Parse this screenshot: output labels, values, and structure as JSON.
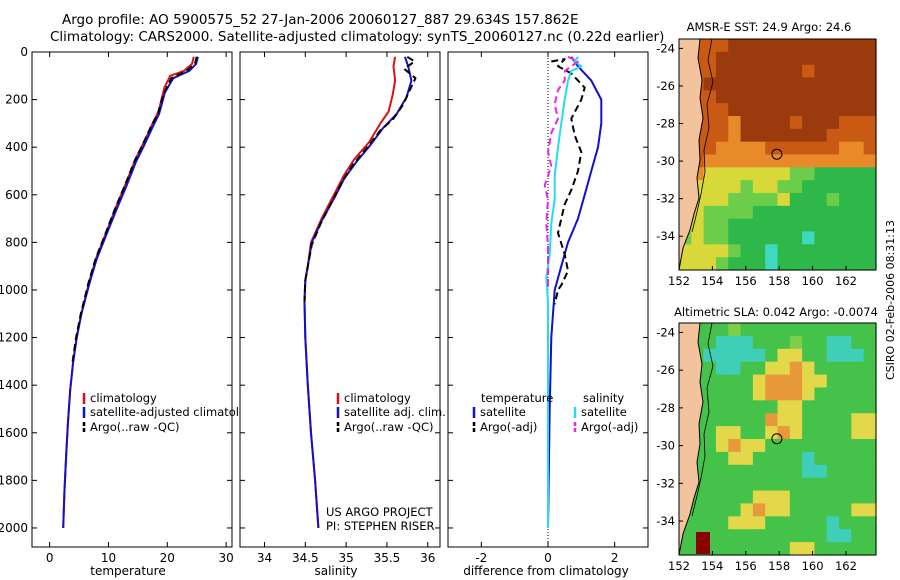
{
  "header": {
    "line1": "Argo profile: AO 5900575_52 27-Jan-2006 20060127_887 29.634S 157.862E",
    "line2": "Climatology: CARS2000. Satellite-adjusted climatology: synTS_20060127.nc (0.22d earlier)"
  },
  "colors": {
    "climatology": "#dd1111",
    "satellite": "#1111cc",
    "argo": "#000000",
    "sat_salinity": "#22ddee",
    "argo_salinity": "#ee22ee",
    "land": "#f2c39c"
  },
  "chart_data": [
    {
      "type": "line",
      "id": "temp",
      "title": "",
      "xlabel": "temperature",
      "ylabel": "",
      "xlim": [
        -3,
        31
      ],
      "ylim": [
        0,
        2080
      ],
      "x_ticks": [
        0,
        10,
        20,
        30
      ],
      "y_ticks": [
        0,
        200,
        400,
        600,
        800,
        1000,
        1200,
        1400,
        1600,
        1800,
        2000
      ],
      "legend": [
        "climatology",
        "satellite-adjusted climatology",
        "Argo(..raw -QC)"
      ],
      "legend_pos": "lower-right",
      "series": [
        {
          "name": "climatology",
          "style": "solid",
          "color_key": "climatology",
          "points": [
            [
              24.5,
              20
            ],
            [
              24.2,
              50
            ],
            [
              22.8,
              80
            ],
            [
              20.5,
              100
            ],
            [
              19.5,
              150
            ],
            [
              18.5,
              250
            ],
            [
              17.5,
              300
            ],
            [
              16,
              380
            ],
            [
              14.6,
              450
            ],
            [
              13,
              550
            ],
            [
              11.3,
              650
            ],
            [
              9.6,
              760
            ],
            [
              8,
              860
            ],
            [
              6.8,
              960
            ],
            [
              5.4,
              1100
            ],
            [
              4.6,
              1200
            ],
            [
              4,
              1300
            ],
            [
              3.5,
              1420
            ],
            [
              3.1,
              1560
            ],
            [
              2.8,
              1700
            ],
            [
              2.5,
              1850
            ],
            [
              2.3,
              2000
            ]
          ]
        },
        {
          "name": "satellite-adjusted climatology",
          "style": "solid",
          "color_key": "satellite",
          "points": [
            [
              25.2,
              20
            ],
            [
              24.9,
              50
            ],
            [
              23.7,
              80
            ],
            [
              21,
              110
            ],
            [
              19.6,
              170
            ],
            [
              18.6,
              260
            ],
            [
              17.6,
              310
            ],
            [
              16.1,
              390
            ],
            [
              14.7,
              460
            ],
            [
              13.1,
              560
            ],
            [
              11.4,
              660
            ],
            [
              9.6,
              770
            ],
            [
              8,
              870
            ],
            [
              6.8,
              970
            ],
            [
              5.4,
              1100
            ],
            [
              4.6,
              1200
            ],
            [
              4,
              1300
            ],
            [
              3.5,
              1420
            ],
            [
              3.1,
              1560
            ],
            [
              2.8,
              1700
            ],
            [
              2.5,
              1850
            ],
            [
              2.3,
              2000
            ]
          ]
        },
        {
          "name": "Argo(..raw -QC)",
          "style": "dashed",
          "color_key": "argo",
          "points": [
            [
              25.0,
              20
            ],
            [
              24.7,
              50
            ],
            [
              23.2,
              80
            ],
            [
              20.7,
              110
            ],
            [
              19.3,
              180
            ],
            [
              18.4,
              260
            ],
            [
              17.3,
              310
            ],
            [
              15.8,
              390
            ],
            [
              14.4,
              460
            ],
            [
              12.8,
              560
            ],
            [
              11.1,
              660
            ],
            [
              9.4,
              770
            ],
            [
              7.8,
              870
            ],
            [
              6.6,
              970
            ],
            [
              5.3,
              1100
            ],
            [
              4.5,
              1200
            ],
            [
              3.9,
              1300
            ]
          ]
        }
      ]
    },
    {
      "type": "line",
      "id": "sal",
      "title": "",
      "xlabel": "salinity",
      "ylabel": "",
      "xlim": [
        33.7,
        36.15
      ],
      "ylim": [
        0,
        2080
      ],
      "x_ticks": [
        34,
        34.5,
        35,
        35.5,
        36
      ],
      "legend": [
        "climatology",
        "satellite adj. clim.",
        "Argo(..raw -QC)"
      ],
      "legend_pos": "lower-right",
      "annotation": [
        "US ARGO PROJECT",
        "PI: STEPHEN RISER"
      ],
      "series": [
        {
          "name": "climatology",
          "style": "solid",
          "color_key": "climatology",
          "points": [
            [
              35.6,
              20
            ],
            [
              35.58,
              60
            ],
            [
              35.6,
              120
            ],
            [
              35.57,
              180
            ],
            [
              35.52,
              250
            ],
            [
              35.42,
              300
            ],
            [
              35.28,
              380
            ],
            [
              35.1,
              450
            ],
            [
              34.97,
              520
            ],
            [
              34.85,
              600
            ],
            [
              34.7,
              700
            ],
            [
              34.57,
              800
            ],
            [
              34.53,
              900
            ],
            [
              34.5,
              960
            ],
            [
              34.49,
              1050
            ],
            [
              34.5,
              1200
            ],
            [
              34.53,
              1400
            ],
            [
              34.57,
              1600
            ],
            [
              34.62,
              1800
            ],
            [
              34.66,
              2000
            ]
          ]
        },
        {
          "name": "satellite adj. clim.",
          "style": "solid",
          "color_key": "satellite",
          "points": [
            [
              35.72,
              20
            ],
            [
              35.76,
              60
            ],
            [
              35.8,
              120
            ],
            [
              35.74,
              190
            ],
            [
              35.62,
              260
            ],
            [
              35.45,
              320
            ],
            [
              35.3,
              390
            ],
            [
              35.13,
              460
            ],
            [
              34.98,
              530
            ],
            [
              34.86,
              610
            ],
            [
              34.7,
              710
            ],
            [
              34.58,
              800
            ],
            [
              34.53,
              900
            ],
            [
              34.5,
              960
            ],
            [
              34.49,
              1050
            ],
            [
              34.5,
              1200
            ],
            [
              34.53,
              1400
            ],
            [
              34.57,
              1600
            ],
            [
              34.62,
              1800
            ],
            [
              34.66,
              2000
            ]
          ]
        },
        {
          "name": "Argo(..raw -QC)",
          "style": "dashed",
          "color_key": "argo",
          "points": [
            [
              35.75,
              20
            ],
            [
              35.84,
              40
            ],
            [
              35.71,
              70
            ],
            [
              35.85,
              110
            ],
            [
              35.78,
              160
            ],
            [
              35.7,
              220
            ],
            [
              35.58,
              280
            ],
            [
              35.42,
              330
            ],
            [
              35.26,
              400
            ],
            [
              35.09,
              470
            ],
            [
              34.96,
              540
            ],
            [
              34.84,
              620
            ],
            [
              34.69,
              720
            ],
            [
              34.58,
              810
            ],
            [
              34.53,
              900
            ],
            [
              34.5,
              960
            ],
            [
              34.49,
              1050
            ]
          ]
        }
      ]
    },
    {
      "type": "line",
      "id": "diff",
      "title": "",
      "xlabel": "difference from climatology",
      "ylabel": "",
      "xlim": [
        -3,
        3
      ],
      "ylim": [
        0,
        2080
      ],
      "x_ticks": [
        -2,
        0,
        2
      ],
      "legend_temperature_title": "temperature",
      "legend_salinity_title": "salinity",
      "legend_temperature": [
        "satellite",
        "Argo(-adj)"
      ],
      "legend_salinity": [
        "satellite",
        "Argo(-adj)"
      ],
      "series": [
        {
          "name": "temperature satellite",
          "style": "solid",
          "color_key": "satellite",
          "points": [
            [
              0.7,
              20
            ],
            [
              0.9,
              60
            ],
            [
              1.3,
              120
            ],
            [
              1.6,
              200
            ],
            [
              1.6,
              300
            ],
            [
              1.5,
              400
            ],
            [
              1.3,
              500
            ],
            [
              1.1,
              600
            ],
            [
              0.9,
              700
            ],
            [
              0.6,
              800
            ],
            [
              0.4,
              900
            ],
            [
              0.2,
              1000
            ],
            [
              0.1,
              1200
            ],
            [
              0.05,
              1500
            ],
            [
              0.02,
              1800
            ],
            [
              0,
              2000
            ]
          ]
        },
        {
          "name": "temperature Argo(-adj)",
          "style": "dashed",
          "color_key": "argo",
          "points": [
            [
              0.1,
              40
            ],
            [
              0.5,
              30
            ],
            [
              0.3,
              60
            ],
            [
              0.7,
              90
            ],
            [
              1.1,
              150
            ],
            [
              1.0,
              200
            ],
            [
              0.7,
              280
            ],
            [
              0.8,
              350
            ],
            [
              1.0,
              420
            ],
            [
              0.9,
              500
            ],
            [
              0.7,
              580
            ],
            [
              0.5,
              640
            ],
            [
              0.4,
              700
            ],
            [
              0.3,
              760
            ],
            [
              0.5,
              850
            ],
            [
              0.6,
              920
            ],
            [
              0.4,
              980
            ],
            [
              0.3,
              1000
            ],
            [
              0.2,
              1060
            ]
          ]
        },
        {
          "name": "salinity satellite",
          "style": "solid",
          "color_key": "sat_salinity",
          "points": [
            [
              0.9,
              20
            ],
            [
              0.8,
              40
            ],
            [
              1.0,
              60
            ],
            [
              0.7,
              80
            ],
            [
              0.6,
              120
            ],
            [
              0.5,
              200
            ],
            [
              0.4,
              300
            ],
            [
              0.3,
              400
            ],
            [
              0.2,
              520
            ],
            [
              0.2,
              620
            ],
            [
              0.1,
              720
            ],
            [
              0.05,
              850
            ],
            [
              -0.05,
              950
            ],
            [
              0,
              1050
            ],
            [
              0,
              1200
            ],
            [
              0,
              1500
            ],
            [
              0,
              1800
            ],
            [
              0,
              2000
            ]
          ]
        },
        {
          "name": "salinity Argo(-adj)",
          "style": "dashed",
          "color_key": "argo_salinity",
          "points": [
            [
              0.6,
              20
            ],
            [
              0.9,
              40
            ],
            [
              0.5,
              80
            ],
            [
              0.5,
              120
            ],
            [
              0.3,
              160
            ],
            [
              0.2,
              220
            ],
            [
              0.3,
              280
            ],
            [
              0.1,
              340
            ],
            [
              0.0,
              420
            ],
            [
              0.1,
              480
            ],
            [
              -0.1,
              560
            ],
            [
              0.0,
              620
            ],
            [
              -0.05,
              720
            ],
            [
              0.0,
              820
            ],
            [
              0.0,
              900
            ],
            [
              0.0,
              1000
            ]
          ]
        }
      ]
    }
  ],
  "maps": [
    {
      "id": "sst",
      "title": "AMSR-E SST: 24.9 Argo: 24.6",
      "lon_ticks": [
        152,
        154,
        156,
        158,
        160,
        162
      ],
      "lat_ticks": [
        -24,
        -26,
        -28,
        -30,
        -32,
        -34
      ],
      "lon_range": [
        152,
        163.8
      ],
      "lat_range": [
        -23.5,
        -35.8
      ],
      "float_position": [
        157.862,
        -29.634
      ],
      "field": [
        "rrrrRRRRRRRRRRRR",
        "rrrRRRRRRRRRRRRR",
        "rrrRRRRRRRrRRRRR",
        "rrRRRRRRRRRRRRRR",
        "rrrRRRRRRRRRRRRR",
        "rrrrRRRRRRRRRRRR",
        "rrrroRRRRrRRRrrr",
        "rrrroRRRRRRRrrrr",
        "rrroooorrrrrroor",
        "rroooooooooooooo",
        "ooyyyyyyyggGGGGG",
        "oyyyygyyggGGGGGG",
        "yyyyggggyGGGgGGG",
        "yyggggGGGGGGGGGG",
        "yyggGGGGGGGGGGGG",
        "gyggGGGGGGcGGGGG",
        "yyyygGGcGGGGGGGG",
        "yyygGGGcGGGGGGGG"
      ]
    },
    {
      "id": "sla",
      "title": "Altimetric SLA: 0.042 Argo: -0.0074",
      "lon_ticks": [
        152,
        154,
        156,
        158,
        160,
        162
      ],
      "lat_ticks": [
        -24,
        -26,
        -28,
        -30,
        -32,
        -34
      ],
      "lon_range": [
        152,
        163.8
      ],
      "lat_range": [
        -23.5,
        -35.8
      ],
      "float_position": [
        157.862,
        -29.634
      ],
      "field": [
        "GGGGgGGGGGGGGGGG",
        "GGGcccGGGgGGccGG",
        "GGcccccGyyGGcccG",
        "GGGccGGyyoyGGGGG",
        "GGGGGGyoooyyGGGG",
        "GGGGGGyoooyGGGGG",
        "GGGGGGGGyyGGGGGG",
        "GGGGGGGoyyGGGGyy",
        "GGGyyGGyoyGGGGyy",
        "GGGyoyyGGGGGGGGG",
        "GGGGyyGGGGcGGGGG",
        "GGGGGGGGGGccGGGG",
        "GGGGGGGGGGGGGGGG",
        "GGGGGGyyyGGGGGGG",
        "GGGGGyoyyGGGGGyy",
        "GGGGyyyGGGGGcGGG",
        "GGGGGGGGGGGGccGG",
        "GGGGGGGGGyyGGGGG"
      ]
    }
  ],
  "footer": {
    "stamp": "CSIRO 02-Feb-2006 08:31:13"
  }
}
